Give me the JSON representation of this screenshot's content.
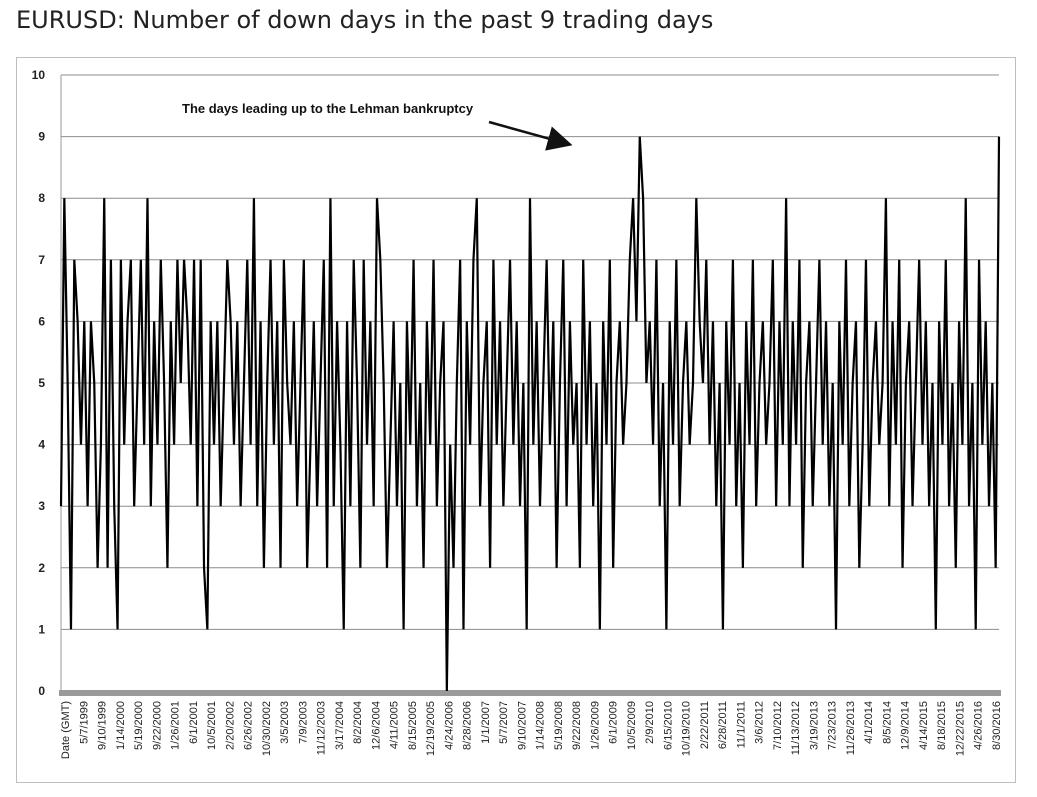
{
  "page": {
    "title": "EURUSD: Number of down days in the past 9 trading days"
  },
  "chart_data": {
    "type": "line",
    "ylim": [
      0,
      10
    ],
    "y_ticks": [
      0,
      1,
      2,
      3,
      4,
      5,
      6,
      7,
      8,
      9,
      10
    ],
    "x_tick_labels": [
      "Date (GMT)",
      "5/7/1999",
      "9/10/1999",
      "1/14/2000",
      "5/19/2000",
      "9/22/2000",
      "1/26/2001",
      "6/1/2001",
      "10/5/2001",
      "2/20/2002",
      "6/26/2002",
      "10/30/2002",
      "3/5/2003",
      "7/9/2003",
      "11/12/2003",
      "3/17/2004",
      "8/2/2004",
      "12/6/2004",
      "4/11/2005",
      "8/15/2005",
      "12/19/2005",
      "4/24/2006",
      "8/28/2006",
      "1/1/2007",
      "5/7/2007",
      "9/10/2007",
      "1/14/2008",
      "5/19/2008",
      "9/22/2008",
      "1/26/2009",
      "6/1/2009",
      "10/5/2009",
      "2/9/2010",
      "6/15/2010",
      "10/19/2010",
      "2/22/2011",
      "6/28/2011",
      "11/1/2011",
      "3/6/2012",
      "7/10/2012",
      "11/13/2012",
      "3/19/2013",
      "7/23/2013",
      "11/26/2013",
      "4/1/2014",
      "8/5/2014",
      "12/9/2014",
      "4/14/2015",
      "8/18/2015",
      "12/22/2015",
      "4/26/2016",
      "8/30/2016"
    ],
    "grid": true,
    "legend": "none",
    "series": [
      {
        "color": "#000000",
        "values": [
          3,
          8,
          5,
          1,
          7,
          6,
          4,
          6,
          3,
          6,
          5,
          2,
          4,
          8,
          2,
          7,
          3,
          1,
          7,
          4,
          6,
          7,
          3,
          5,
          7,
          4,
          8,
          3,
          6,
          4,
          7,
          5,
          2,
          6,
          4,
          7,
          5,
          7,
          6,
          4,
          7,
          3,
          7,
          2,
          1,
          6,
          4,
          6,
          3,
          5,
          7,
          6,
          4,
          6,
          3,
          5,
          7,
          4,
          8,
          3,
          6,
          2,
          5,
          7,
          4,
          6,
          2,
          7,
          5,
          4,
          6,
          3,
          5,
          7,
          2,
          4,
          6,
          3,
          5,
          7,
          2,
          8,
          3,
          6,
          4,
          1,
          6,
          3,
          7,
          5,
          2,
          7,
          4,
          6,
          3,
          8,
          7,
          5,
          2,
          4,
          6,
          3,
          5,
          1,
          6,
          4,
          7,
          3,
          5,
          2,
          6,
          4,
          7,
          3,
          5,
          6,
          0,
          4,
          2,
          5,
          7,
          1,
          6,
          4,
          7,
          8,
          3,
          5,
          6,
          2,
          7,
          4,
          6,
          3,
          5,
          7,
          4,
          6,
          3,
          5,
          1,
          8,
          4,
          6,
          3,
          5,
          7,
          4,
          6,
          2,
          5,
          7,
          3,
          6,
          4,
          5,
          2,
          7,
          4,
          6,
          3,
          5,
          1,
          6,
          4,
          7,
          2,
          5,
          6,
          4,
          5,
          7,
          8,
          6,
          9,
          8,
          5,
          6,
          4,
          7,
          3,
          5,
          1,
          6,
          4,
          7,
          3,
          5,
          6,
          4,
          5,
          8,
          6,
          5,
          7,
          4,
          6,
          3,
          5,
          1,
          6,
          4,
          7,
          3,
          5,
          2,
          6,
          4,
          7,
          3,
          5,
          6,
          4,
          5,
          7,
          3,
          6,
          4,
          8,
          3,
          6,
          4,
          7,
          2,
          5,
          6,
          3,
          5,
          7,
          4,
          6,
          3,
          5,
          1,
          6,
          4,
          7,
          3,
          5,
          6,
          2,
          4,
          7,
          3,
          5,
          6,
          4,
          5,
          8,
          3,
          6,
          4,
          7,
          2,
          5,
          6,
          3,
          5,
          7,
          4,
          6,
          3,
          5,
          1,
          6,
          4,
          7,
          3,
          5,
          2,
          6,
          4,
          8,
          3,
          5,
          1,
          7,
          4,
          6,
          3,
          5,
          2,
          9
        ]
      }
    ]
  },
  "annotations": [
    {
      "text": "The days leading up to the Lehman bankruptcy",
      "target_x_label": "9/22/2008",
      "target_y": 9
    }
  ]
}
